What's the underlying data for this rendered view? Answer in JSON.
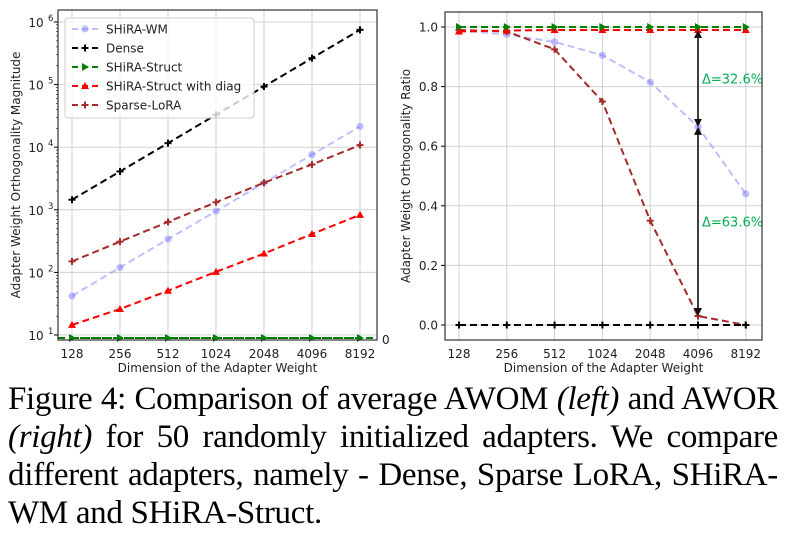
{
  "chart_data": [
    {
      "type": "line",
      "panel": "left",
      "xlabel": "Dimension of the Adapter Weight",
      "ylabel": "Adapter Weight Orthogonality Magnitude",
      "xscale": "log2",
      "yscale": "log",
      "categories": [
        "128",
        "256",
        "512",
        "1024",
        "2048",
        "4096",
        "8192"
      ],
      "yticks": [
        {
          "value": 10,
          "label": "10",
          "exp": "1"
        },
        {
          "value": 100,
          "label": "10",
          "exp": "2"
        },
        {
          "value": 1000,
          "label": "10",
          "exp": "3"
        },
        {
          "value": 10000,
          "label": "10",
          "exp": "4"
        },
        {
          "value": 100000,
          "label": "10",
          "exp": "5"
        },
        {
          "value": 1000000,
          "label": "10",
          "exp": "6"
        }
      ],
      "extra_tick_label": "0",
      "ylim": [
        8.5,
        1300000
      ],
      "grid": true,
      "legend_position": "upper-left",
      "series": [
        {
          "name": "SHiRA-WM",
          "color": "#8080ff",
          "marker": "circle",
          "values": [
            42,
            120,
            340,
            950,
            2700,
            7600,
            21500
          ]
        },
        {
          "name": "Dense",
          "color": "#000000",
          "marker": "plus",
          "values": [
            1450,
            4100,
            11600,
            33000,
            93000,
            265000,
            750000
          ]
        },
        {
          "name": "SHiRA-Struct",
          "color": "#008000",
          "marker": "triangle-right",
          "values": [
            0,
            0,
            0,
            0,
            0,
            0,
            0
          ]
        },
        {
          "name": "SHiRA-Struct with diag",
          "color": "#ff0000",
          "marker": "triangle-up",
          "values": [
            14.5,
            26,
            51,
            102,
            200,
            410,
            830
          ]
        },
        {
          "name": "Sparse-LoRA",
          "color": "#a52a2a",
          "marker": "plus",
          "values": [
            150,
            310,
            640,
            1320,
            2700,
            5300,
            10800
          ]
        }
      ]
    },
    {
      "type": "line",
      "panel": "right",
      "xlabel": "Dimension of the Adapter Weight",
      "ylabel": "Adapter Weight Orthogonality Ratio",
      "categories": [
        "128",
        "256",
        "512",
        "1024",
        "2048",
        "4096",
        "8192"
      ],
      "yticks": [
        "0.0",
        "0.2",
        "0.4",
        "0.6",
        "0.8",
        "1.0"
      ],
      "ylim": [
        -0.05,
        1.05
      ],
      "grid": true,
      "series": [
        {
          "name": "SHiRA-WM",
          "color": "#8080ff",
          "marker": "circle",
          "values": [
            0.988,
            0.975,
            0.95,
            0.905,
            0.815,
            0.665,
            0.44
          ]
        },
        {
          "name": "Dense",
          "color": "#000000",
          "marker": "plus",
          "values": [
            0,
            0,
            0,
            0,
            0,
            0,
            0
          ]
        },
        {
          "name": "SHiRA-Struct",
          "color": "#008000",
          "marker": "triangle-right",
          "values": [
            1.0,
            1.0,
            1.0,
            1.0,
            1.0,
            1.0,
            1.0
          ]
        },
        {
          "name": "SHiRA-Struct with diag",
          "color": "#ff0000",
          "marker": "triangle-up",
          "values": [
            0.985,
            0.988,
            0.99,
            0.99,
            0.99,
            0.99,
            0.99
          ]
        },
        {
          "name": "Sparse-LoRA",
          "color": "#a52a2a",
          "marker": "plus",
          "values": [
            0.99,
            0.985,
            0.925,
            0.75,
            0.35,
            0.03,
            0.0
          ]
        }
      ],
      "annotations": [
        {
          "text": "Δ=32.6%",
          "color": "#00b050",
          "x": "4096",
          "from": 0.99,
          "to": 0.665
        },
        {
          "text": "Δ=63.6%",
          "color": "#00b050",
          "x": "4096",
          "from": 0.665,
          "to": 0.03
        }
      ]
    }
  ],
  "caption": {
    "part1": "Figure 4:  Comparison of average AWOM ",
    "left_em": "(left)",
    "part2": " and AWOR ",
    "right_em": "(right)",
    "part3": " for 50 randomly initialized adapters. We compare different adapters, namely - Dense, Sparse LoRA, SHiRA-WM and SHiRA-Struct."
  }
}
